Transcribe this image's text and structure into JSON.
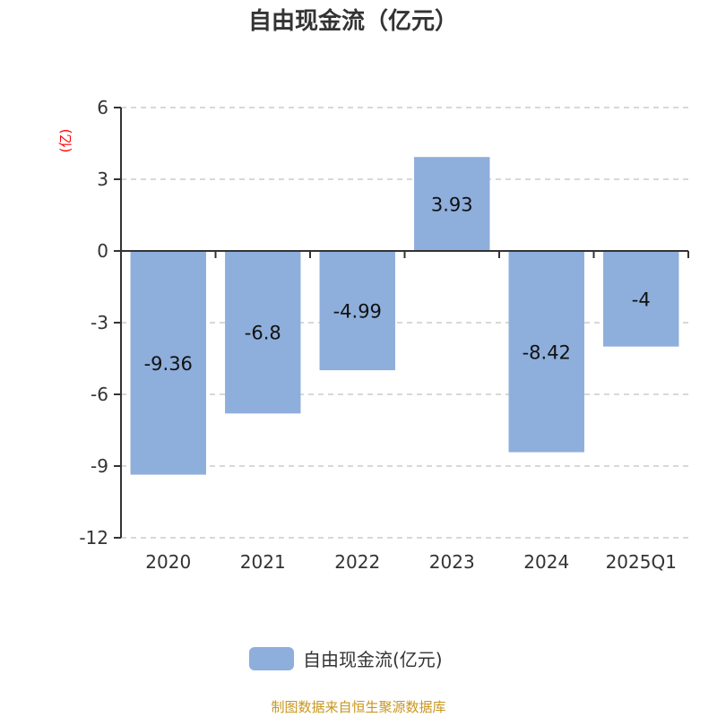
{
  "chart_data": {
    "type": "bar",
    "title": "自由现金流（亿元）",
    "ylabel": "(亿)",
    "xlabel": "",
    "categories": [
      "2020",
      "2021",
      "2022",
      "2023",
      "2024",
      "2025Q1"
    ],
    "series": [
      {
        "name": "自由现金流(亿元)",
        "values": [
          -9.36,
          -6.8,
          -4.99,
          3.93,
          -8.42,
          -4
        ],
        "labels": [
          "-9.36",
          "-6.8",
          "-4.99",
          "3.93",
          "-8.42",
          "-4"
        ]
      }
    ],
    "ylim": [
      -12,
      6
    ],
    "yticks": [
      "6",
      "3",
      "0",
      "-3",
      "-6",
      "-9",
      "-12"
    ],
    "ytick_values": [
      6,
      3,
      0,
      -3,
      -6,
      -9,
      -12
    ],
    "grid": true,
    "legend": "bottom",
    "colors": {
      "bar": "#8eaedb",
      "ylabel": "#ff0000",
      "footer": "#c8961e"
    }
  },
  "footer": "制图数据来自恒生聚源数据库"
}
